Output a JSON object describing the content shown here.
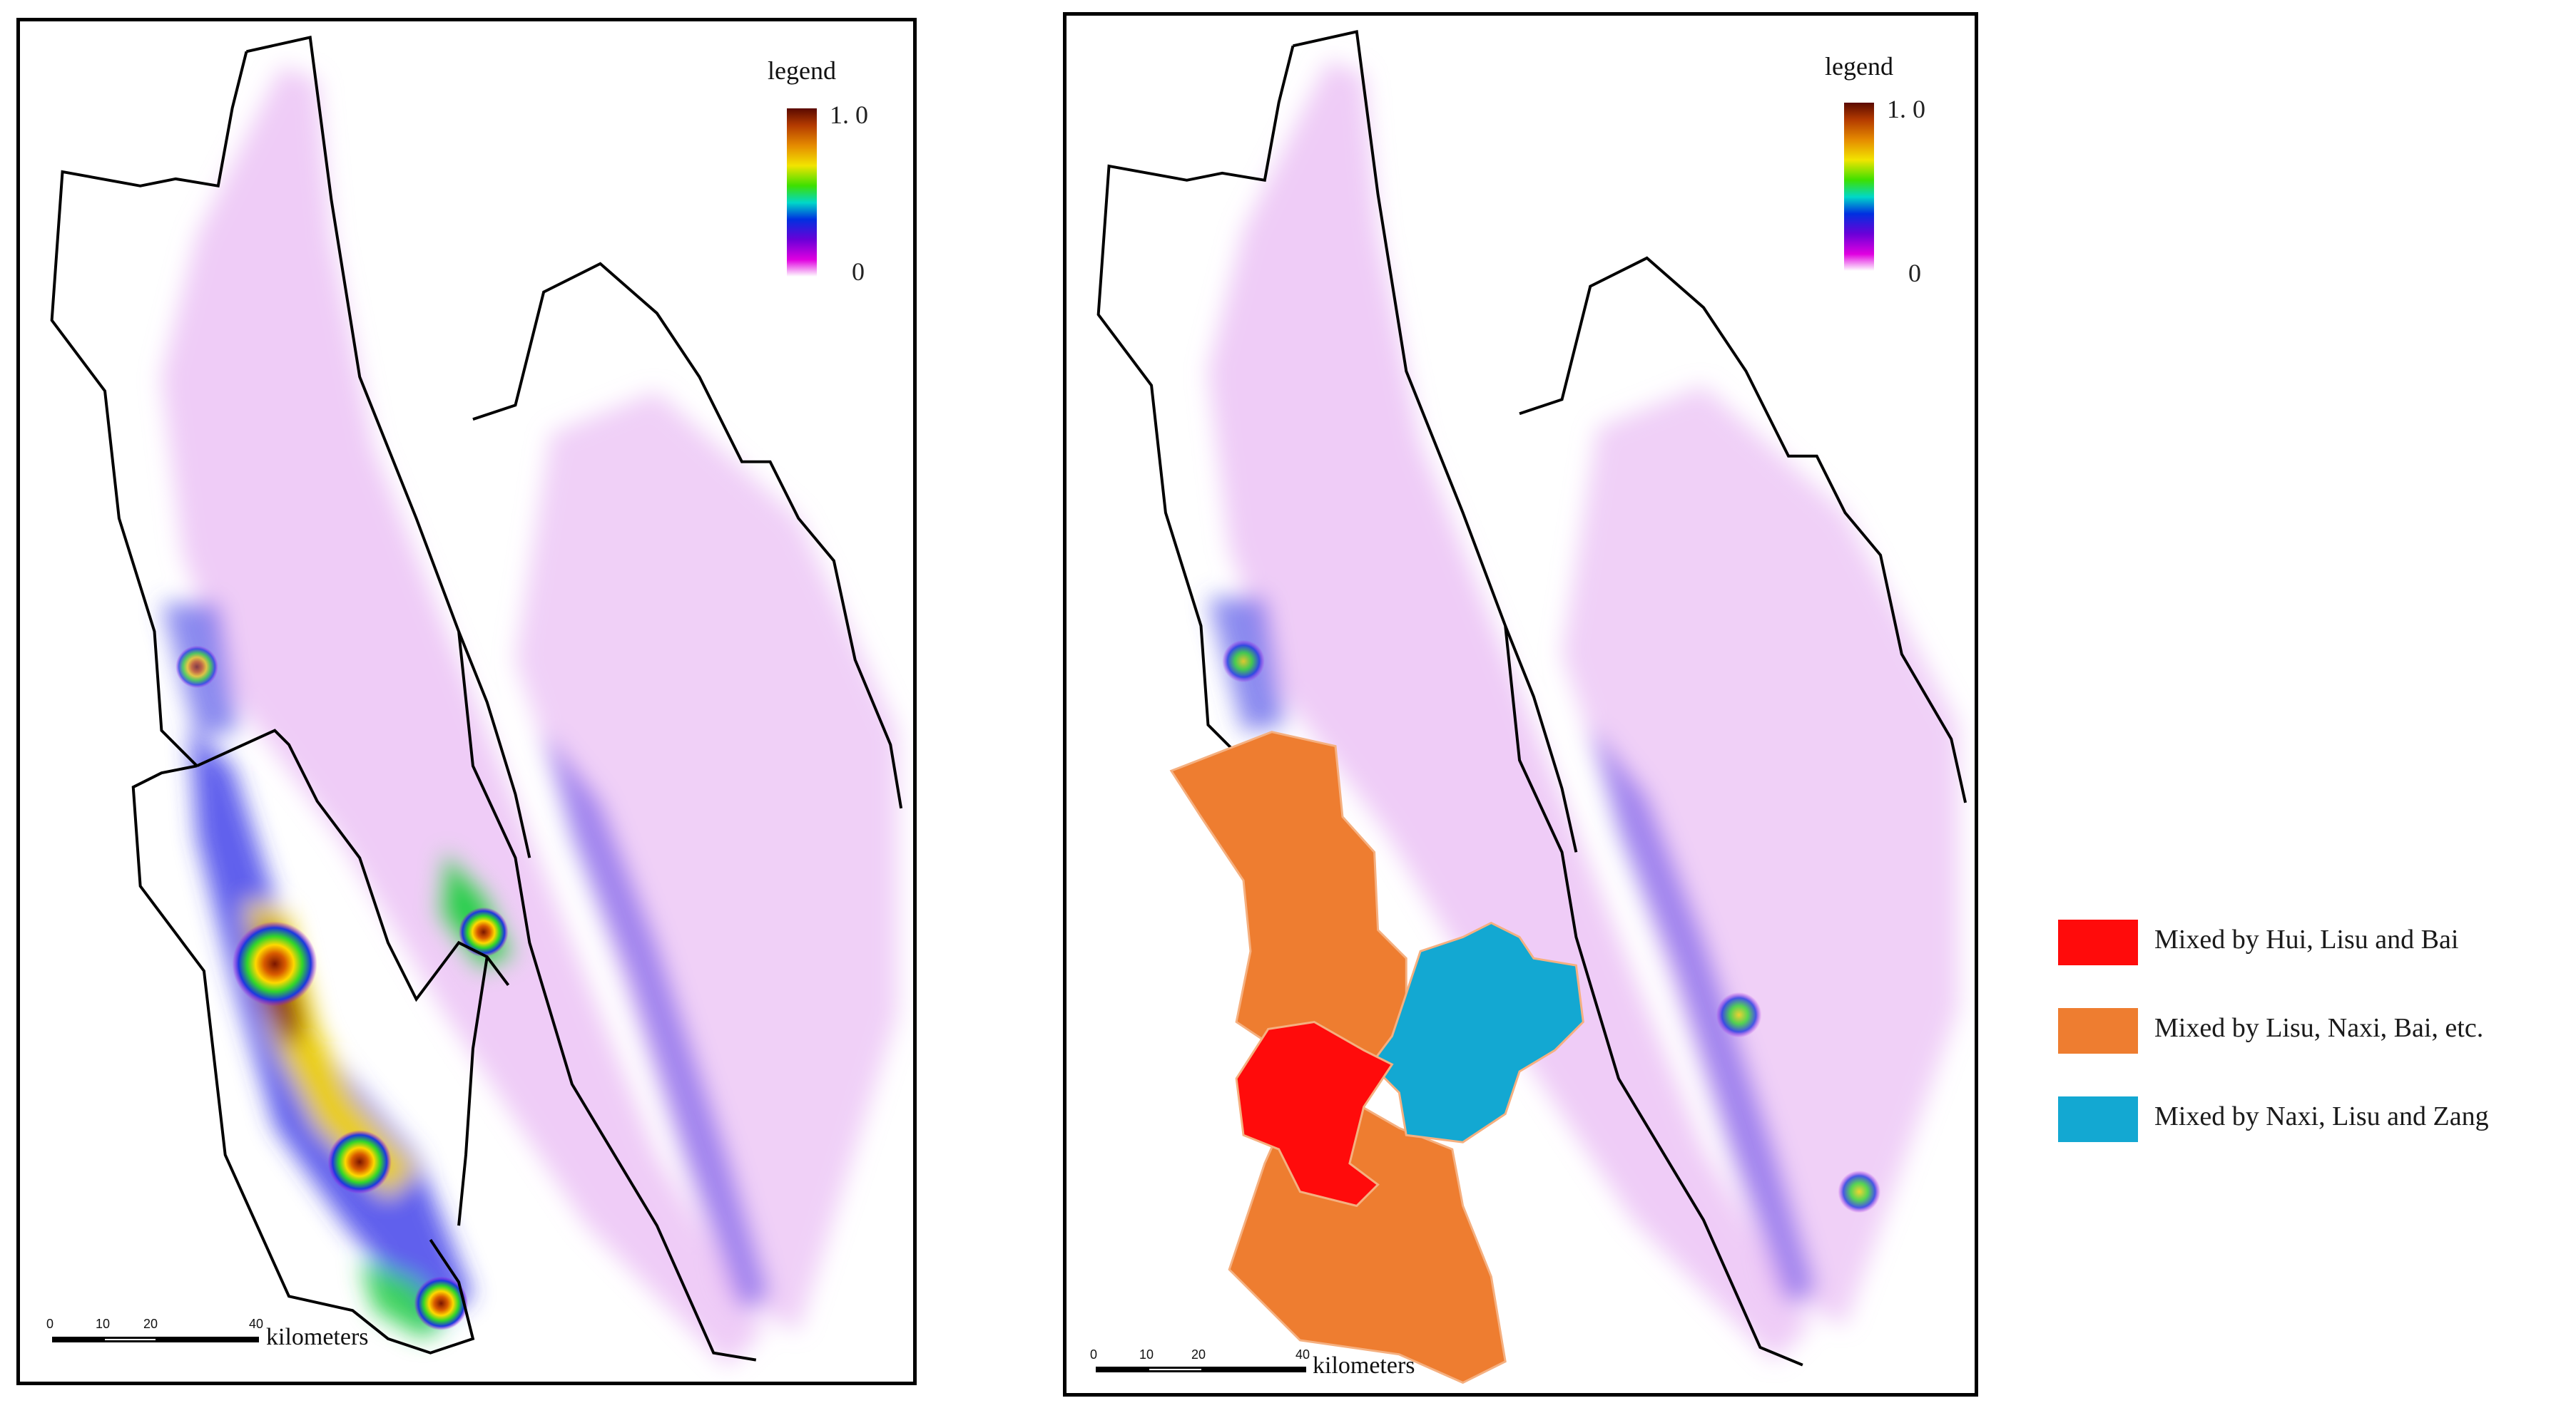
{
  "maps": [
    {
      "legend": {
        "title": "legend",
        "max_label": "1. 0",
        "min_label": "0",
        "gradient_colors": [
          "#5a0a00",
          "#b33a00",
          "#e58a00",
          "#f2e400",
          "#3de000",
          "#00d8c8",
          "#0030e0",
          "#6a00d8",
          "#e000e0",
          "#ffffff"
        ]
      },
      "scale": {
        "ticks": [
          "0",
          "10",
          "20",
          "40"
        ],
        "unit": "kilometers"
      }
    },
    {
      "legend": {
        "title": "legend",
        "max_label": "1. 0",
        "min_label": "0",
        "gradient_colors": [
          "#5a0a00",
          "#b33a00",
          "#e58a00",
          "#f2e400",
          "#3de000",
          "#00d8c8",
          "#0030e0",
          "#6a00d8",
          "#e000e0",
          "#ffffff"
        ]
      },
      "scale": {
        "ticks": [
          "0",
          "10",
          "20",
          "40"
        ],
        "unit": "kilometers"
      }
    }
  ],
  "category_legend": [
    {
      "label": "Mixed by Hui, Lisu and Bai",
      "color": "#ff0b0b"
    },
    {
      "label": "Mixed by Lisu, Naxi, Bai, etc.",
      "color": "#ee7d30"
    },
    {
      "label": "Mixed by Naxi, Lisu and Zang",
      "color": "#13a8d2"
    }
  ]
}
